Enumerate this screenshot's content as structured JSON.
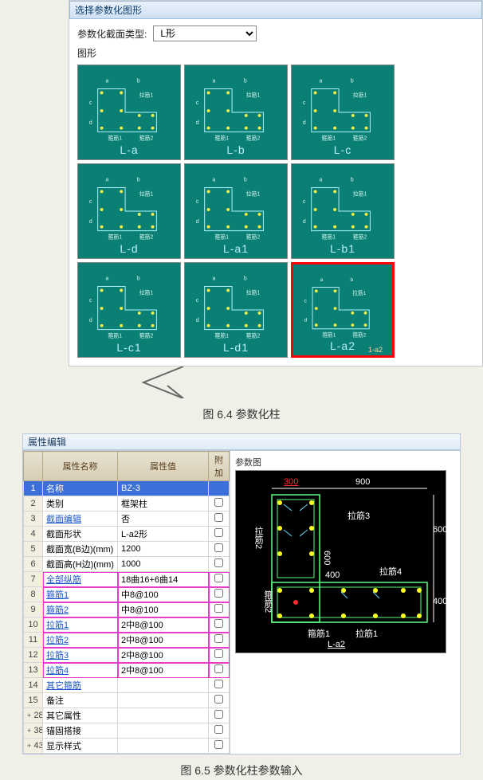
{
  "dialog": {
    "title": "选择参数化图形",
    "section_label": "参数化截面类型:",
    "section_value": "L形",
    "shapes_label": "图形"
  },
  "thumbs": [
    {
      "name": "L-a",
      "selected": false
    },
    {
      "name": "L-b",
      "selected": false
    },
    {
      "name": "L-c",
      "selected": false
    },
    {
      "name": "L-d",
      "selected": false
    },
    {
      "name": "L-a1",
      "selected": false
    },
    {
      "name": "L-b1",
      "selected": false
    },
    {
      "name": "L-c1",
      "selected": false
    },
    {
      "name": "L-d1",
      "selected": false
    },
    {
      "name": "L-a2",
      "selected": true,
      "corner": "1-a2"
    }
  ],
  "caption1": "图 6.4  参数化柱",
  "propTitle": "属性编辑",
  "headers": {
    "name": "属性名称",
    "value": "属性值",
    "extra": "附加"
  },
  "rows": [
    {
      "idx": "1",
      "name": "名称",
      "value": "BZ-3",
      "link": false,
      "sel": true
    },
    {
      "idx": "2",
      "name": "类别",
      "value": "框架柱",
      "link": false
    },
    {
      "idx": "3",
      "name": "截面编辑",
      "value": "否",
      "link": true
    },
    {
      "idx": "4",
      "name": "截面形状",
      "value": "L-a2形",
      "link": false
    },
    {
      "idx": "5",
      "name": "截面宽(B边)(mm)",
      "value": "1200",
      "link": false
    },
    {
      "idx": "6",
      "name": "截面高(H边)(mm)",
      "value": "1000",
      "link": false
    },
    {
      "idx": "7",
      "name": "全部纵筋",
      "value": "18曲16+6曲14",
      "link": true
    },
    {
      "idx": "8",
      "name": "箍筋1",
      "value": "中8@100",
      "link": true
    },
    {
      "idx": "9",
      "name": "箍筋2",
      "value": "中8@100",
      "link": true
    },
    {
      "idx": "10",
      "name": "拉筋1",
      "value": "2中8@100",
      "link": true
    },
    {
      "idx": "11",
      "name": "拉筋2",
      "value": "2中8@100",
      "link": true
    },
    {
      "idx": "12",
      "name": "拉筋3",
      "value": "2中8@100",
      "link": true
    },
    {
      "idx": "13",
      "name": "拉筋4",
      "value": "2中8@100",
      "link": true
    },
    {
      "idx": "14",
      "name": "其它箍筋",
      "value": "",
      "link": true
    },
    {
      "idx": "15",
      "name": "备注",
      "value": "",
      "link": false
    },
    {
      "idx": "28",
      "name": "其它属性",
      "value": "",
      "link": false,
      "exp": "+"
    },
    {
      "idx": "38",
      "name": "锚固搭接",
      "value": "",
      "link": false,
      "exp": "+"
    },
    {
      "idx": "43",
      "name": "显示样式",
      "value": "",
      "link": false,
      "exp": "+"
    }
  ],
  "hl_rows": [
    7,
    8,
    9,
    10,
    11,
    12,
    13
  ],
  "preview": {
    "title": "参数图",
    "dims": {
      "top1": "300",
      "top2": "900",
      "right1": "600",
      "right2": "400",
      "mid1": "600",
      "mid2": "400"
    },
    "labels": {
      "l1": "拉筋2",
      "l2": "箍筋2",
      "l3": "拉筋3",
      "l4": "拉筋4",
      "l5": "箍筋1",
      "l6": "拉筋1",
      "bottom": "L-a2"
    },
    "colors": {
      "bg": "#000000",
      "outline": "#7effa0",
      "dot": "#ffff20",
      "dim": "#ff2a2a",
      "text": "#ffffff"
    }
  },
  "caption2": "图 6.5  参数化柱参数输入"
}
